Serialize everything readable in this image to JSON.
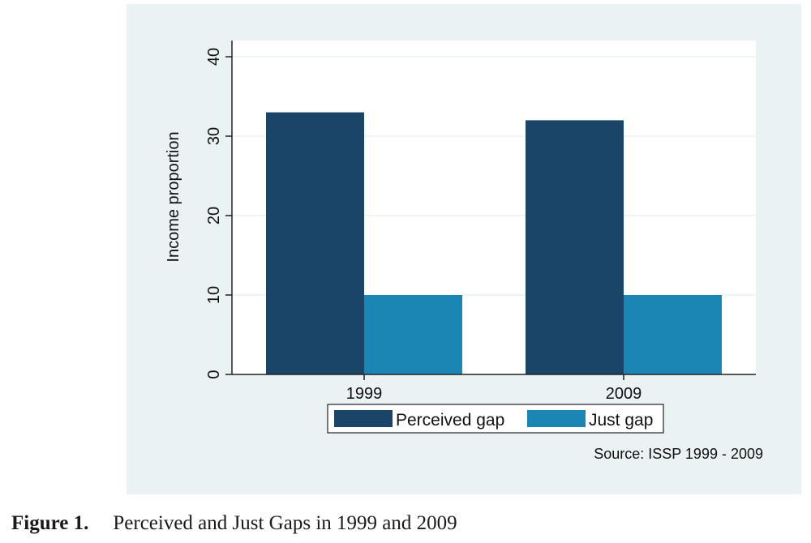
{
  "chart_data": {
    "type": "bar",
    "categories": [
      "1999",
      "2009"
    ],
    "series": [
      {
        "name": "Perceived gap",
        "values": [
          33,
          32
        ],
        "color": "#1a4468"
      },
      {
        "name": "Just gap",
        "values": [
          10,
          10
        ],
        "color": "#1b86b3"
      }
    ],
    "ylabel": "Income proportion",
    "xlabel": "",
    "ylim": [
      0,
      40
    ],
    "yticks": [
      0,
      10,
      20,
      30,
      40
    ],
    "grid": true,
    "legend_position": "bottom",
    "source": "Source: ISSP 1999 - 2009"
  },
  "caption": {
    "label": "Figure 1.",
    "text": "Perceived and Just Gaps in 1999 and 2009"
  },
  "colors": {
    "panel_background": "#eaf2f3",
    "plot_background": "#ffffff",
    "gridline": "#eaf2f3"
  }
}
